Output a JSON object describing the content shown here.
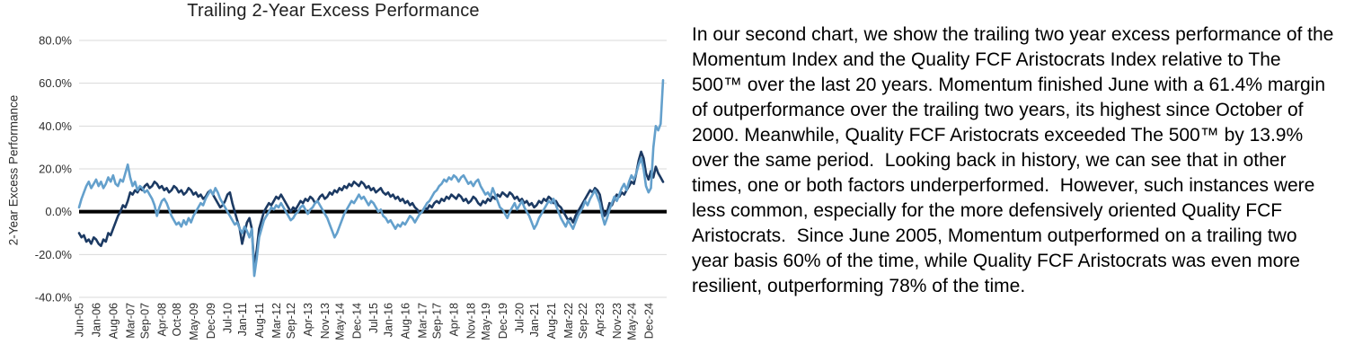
{
  "chart_data": {
    "type": "line",
    "title": "Trailing 2-Year Excess Performance",
    "ylabel": "2-Year Excess Performance",
    "ylim": [
      -40,
      80
    ],
    "grid": true,
    "legend": "none",
    "zero_line_color": "#000000",
    "gridline_color": "#d9d9d9",
    "x_unit": "months since Jun-2005",
    "x_domain": [
      0,
      240
    ],
    "y_ticks": [
      {
        "label": "80.0%",
        "v": 80
      },
      {
        "label": "60.0%",
        "v": 60
      },
      {
        "label": "40.0%",
        "v": 40
      },
      {
        "label": "20.0%",
        "v": 20
      },
      {
        "label": "0.0%",
        "v": 0
      },
      {
        "label": "-20.0%",
        "v": -20
      },
      {
        "label": "-40.0%",
        "v": -40
      }
    ],
    "x_ticks": [
      {
        "label": "Jun-05",
        "m": 0
      },
      {
        "label": "Jan-06",
        "m": 7
      },
      {
        "label": "Aug-06",
        "m": 14
      },
      {
        "label": "Mar-07",
        "m": 21
      },
      {
        "label": "Sep-07",
        "m": 27
      },
      {
        "label": "Apr-08",
        "m": 34
      },
      {
        "label": "Oct-08",
        "m": 40
      },
      {
        "label": "May-09",
        "m": 47
      },
      {
        "label": "Dec-09",
        "m": 54
      },
      {
        "label": "Jul-10",
        "m": 61
      },
      {
        "label": "Jan-11",
        "m": 67
      },
      {
        "label": "Aug-11",
        "m": 74
      },
      {
        "label": "Mar-12",
        "m": 81
      },
      {
        "label": "Sep-12",
        "m": 87
      },
      {
        "label": "Apr-13",
        "m": 94
      },
      {
        "label": "Nov-13",
        "m": 101
      },
      {
        "label": "May-14",
        "m": 107
      },
      {
        "label": "Dec-14",
        "m": 114
      },
      {
        "label": "Jul-15",
        "m": 121
      },
      {
        "label": "Jan-16",
        "m": 127
      },
      {
        "label": "Aug-16",
        "m": 134
      },
      {
        "label": "Mar-17",
        "m": 141
      },
      {
        "label": "Sep-17",
        "m": 147
      },
      {
        "label": "Apr-18",
        "m": 154
      },
      {
        "label": "Nov-18",
        "m": 161
      },
      {
        "label": "May-19",
        "m": 167
      },
      {
        "label": "Dec-19",
        "m": 174
      },
      {
        "label": "Jul-20",
        "m": 181
      },
      {
        "label": "Jan-21",
        "m": 187
      },
      {
        "label": "Aug-21",
        "m": 194
      },
      {
        "label": "Mar-22",
        "m": 201
      },
      {
        "label": "Sep-22",
        "m": 207
      },
      {
        "label": "Apr-23",
        "m": 214
      },
      {
        "label": "Nov-23",
        "m": 221
      },
      {
        "label": "May-24",
        "m": 227
      },
      {
        "label": "Dec-24",
        "m": 234
      }
    ],
    "series": [
      {
        "name": "Momentum Index",
        "color": "#64a0cc",
        "final_value_pct": 61.4,
        "values": [
          2,
          6,
          9,
          12,
          14,
          11,
          13,
          15,
          12,
          14,
          11,
          13,
          16,
          14,
          17,
          13,
          12,
          15,
          14,
          18,
          22,
          16,
          12,
          14,
          10,
          12,
          11,
          9,
          10,
          8,
          6,
          3,
          -2,
          2,
          5,
          6,
          4,
          1,
          -2,
          -4,
          -6,
          -5,
          -7,
          -4,
          -6,
          -3,
          -5,
          -2,
          0,
          2,
          4,
          3,
          6,
          8,
          10,
          8,
          11,
          9,
          6,
          4,
          2,
          0,
          -2,
          -4,
          -6,
          -5,
          -8,
          -10,
          -7,
          -9,
          -12,
          -8,
          -30,
          -22,
          -12,
          -8,
          -4,
          -2,
          0,
          2,
          1,
          3,
          2,
          4,
          2,
          0,
          -2,
          -4,
          -3,
          -1,
          0,
          2,
          3,
          1,
          -1,
          1,
          2,
          4,
          5,
          3,
          1,
          -1,
          -3,
          -6,
          -9,
          -12,
          -10,
          -7,
          -4,
          -1,
          1,
          3,
          5,
          4,
          6,
          8,
          6,
          7,
          5,
          3,
          5,
          4,
          2,
          0,
          1,
          -2,
          -3,
          -5,
          -4,
          -6,
          -8,
          -6,
          -7,
          -5,
          -6,
          -4,
          -2,
          -3,
          -5,
          -3,
          -1,
          0,
          2,
          4,
          5,
          7,
          9,
          10,
          12,
          13,
          15,
          14,
          16,
          15,
          17,
          16,
          14,
          16,
          17,
          15,
          13,
          14,
          12,
          14,
          15,
          12,
          10,
          8,
          9,
          7,
          11,
          8,
          5,
          2,
          1,
          -1,
          -3,
          0,
          2,
          4,
          1,
          3,
          5,
          2,
          0,
          -2,
          -5,
          -8,
          -6,
          -3,
          -1,
          1,
          3,
          5,
          4,
          6,
          3,
          0,
          -3,
          -5,
          -7,
          -4,
          -6,
          -8,
          -5,
          -2,
          0,
          2,
          5,
          3,
          6,
          8,
          10,
          7,
          4,
          -2,
          -6,
          -3,
          1,
          4,
          7,
          5,
          8,
          11,
          13,
          10,
          14,
          17,
          15,
          18,
          22,
          25,
          20,
          12,
          9,
          11,
          30,
          40,
          38,
          41,
          61.4
        ]
      },
      {
        "name": "Quality FCF Aristocrats Index",
        "color": "#1c3a63",
        "final_value_pct": 13.9,
        "values": [
          -10,
          -12,
          -11,
          -14,
          -13,
          -15,
          -12,
          -13,
          -15,
          -16,
          -13,
          -14,
          -10,
          -11,
          -8,
          -5,
          -2,
          0,
          3,
          2,
          5,
          9,
          8,
          10,
          9,
          11,
          10,
          12,
          13,
          11,
          12,
          14,
          13,
          11,
          12,
          10,
          11,
          9,
          10,
          12,
          11,
          9,
          10,
          8,
          9,
          11,
          10,
          8,
          9,
          7,
          8,
          6,
          7,
          9,
          10,
          8,
          6,
          4,
          2,
          3,
          5,
          8,
          9,
          4,
          0,
          -4,
          -8,
          -15,
          -10,
          -5,
          -3,
          -8,
          -26,
          -18,
          -8,
          -4,
          0,
          2,
          4,
          3,
          5,
          7,
          6,
          8,
          6,
          4,
          2,
          0,
          2,
          1,
          3,
          5,
          4,
          6,
          5,
          7,
          6,
          4,
          5,
          7,
          8,
          6,
          7,
          9,
          8,
          10,
          9,
          11,
          10,
          12,
          11,
          13,
          12,
          14,
          13,
          12,
          14,
          13,
          11,
          12,
          10,
          11,
          9,
          10,
          11,
          9,
          8,
          9,
          7,
          8,
          6,
          7,
          5,
          6,
          4,
          5,
          3,
          4,
          2,
          1,
          -1,
          0,
          2,
          1,
          3,
          2,
          4,
          5,
          4,
          6,
          5,
          7,
          6,
          8,
          7,
          6,
          8,
          7,
          5,
          6,
          4,
          5,
          7,
          6,
          4,
          3,
          5,
          4,
          6,
          5,
          7,
          6,
          8,
          7,
          9,
          8,
          7,
          9,
          8,
          6,
          7,
          5,
          6,
          4,
          5,
          3,
          4,
          2,
          3,
          5,
          4,
          6,
          5,
          7,
          6,
          4,
          5,
          3,
          2,
          0,
          -2,
          -4,
          -3,
          -5,
          -2,
          0,
          2,
          4,
          6,
          8,
          10,
          9,
          11,
          10,
          8,
          2,
          -2,
          0,
          4,
          3,
          6,
          8,
          7,
          9,
          8,
          10,
          12,
          14,
          13,
          18,
          24,
          28,
          25,
          18,
          15,
          19,
          16,
          21,
          18,
          16,
          13.9
        ]
      }
    ]
  },
  "commentary": {
    "text": "In our second chart, we show the trailing two year excess performance of the Momentum Index and the Quality FCF Aristocrats Index relative to The 500™ over the last 20 years. Momentum finished June with a 61.4% margin of outperformance over the trailing two years, its highest since October of 2000. Meanwhile, Quality FCF Aristocrats exceeded The 500™ by 13.9% over the same period.  Looking back in history, we can see that in other times, one or both factors underperformed.  However, such instances were less common, especially for the more defensively oriented Quality FCF Aristocrats.  Since June 2005, Momentum outperformed on a trailing two year basis 60% of the time, while Quality FCF Aristocrats was even more resilient, outperforming 78% of the time."
  }
}
